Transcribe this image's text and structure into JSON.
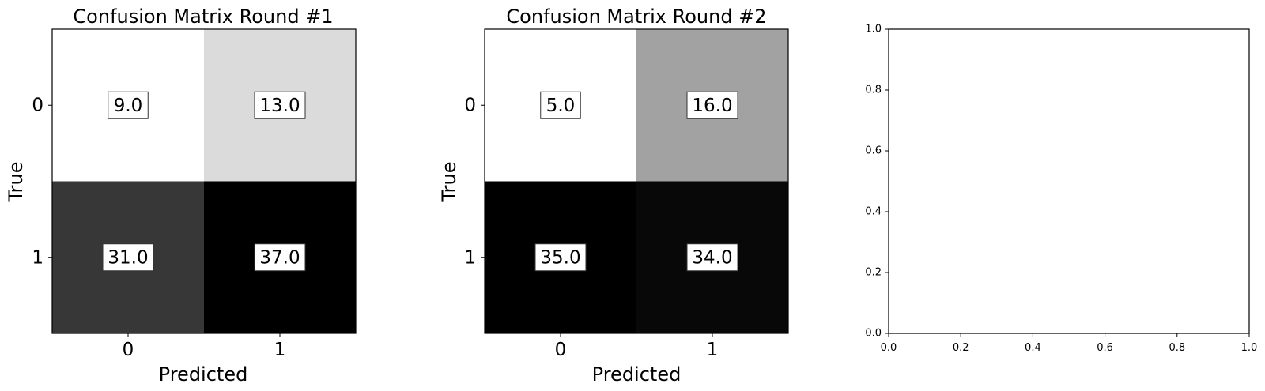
{
  "chart_data": [
    {
      "type": "heatmap",
      "title": "Confusion Matrix Round #1",
      "xlabel": "Predicted",
      "ylabel": "True",
      "xticks": [
        "0",
        "1"
      ],
      "yticks": [
        "0",
        "1"
      ],
      "colormap": "grayscale (white = low, black = high)",
      "matrix": [
        [
          9.0,
          13.0
        ],
        [
          31.0,
          37.0
        ]
      ],
      "labels": [
        [
          "9.0",
          "13.0"
        ],
        [
          "31.0",
          "37.0"
        ]
      ]
    },
    {
      "type": "heatmap",
      "title": "Confusion Matrix Round #2",
      "xlabel": "Predicted",
      "ylabel": "True",
      "xticks": [
        "0",
        "1"
      ],
      "yticks": [
        "0",
        "1"
      ],
      "colormap": "grayscale (white = low, black = high)",
      "matrix": [
        [
          5.0,
          16.0
        ],
        [
          35.0,
          34.0
        ]
      ],
      "labels": [
        [
          "5.0",
          "16.0"
        ],
        [
          "35.0",
          "34.0"
        ]
      ]
    },
    {
      "type": "line",
      "title": "",
      "xlabel": "",
      "ylabel": "",
      "xlim": [
        0.0,
        1.0
      ],
      "ylim": [
        0.0,
        1.0
      ],
      "xticks": [
        "0.0",
        "0.2",
        "0.4",
        "0.6",
        "0.8",
        "1.0"
      ],
      "yticks": [
        "0.0",
        "0.2",
        "0.4",
        "0.6",
        "0.8",
        "1.0"
      ],
      "series": []
    }
  ]
}
